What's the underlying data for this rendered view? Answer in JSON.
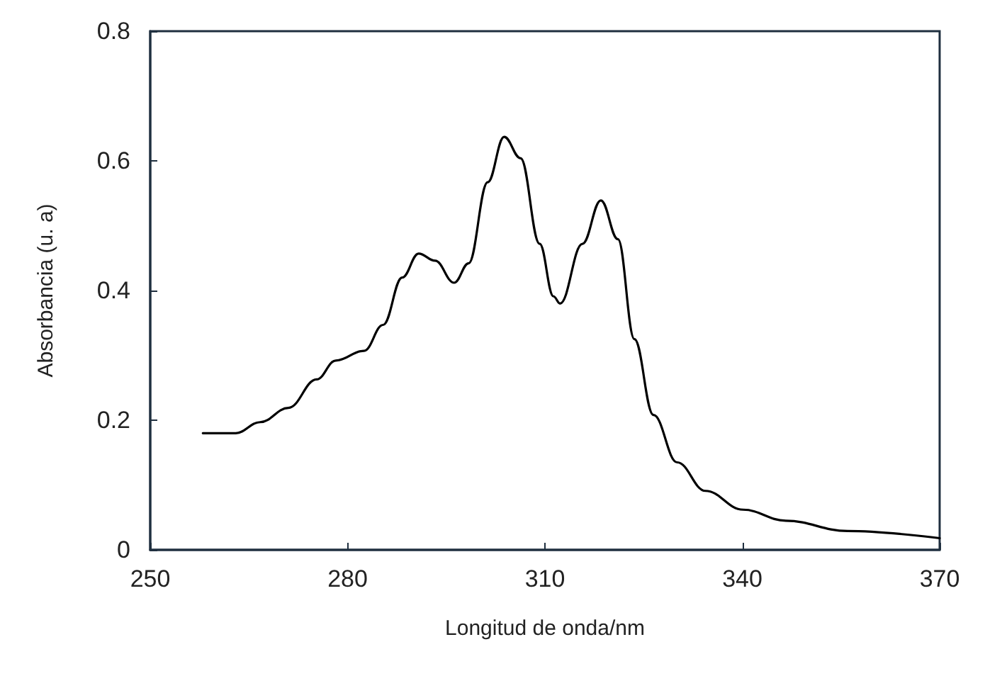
{
  "chart_data": {
    "type": "line",
    "xlabel": "Longitud de onda/nm",
    "ylabel": "Absorbancia (u. a)",
    "x": [
      258,
      263,
      266.7,
      271,
      275.3,
      278.2,
      282.5,
      285.4,
      288.3,
      290.8,
      293.3,
      296.2,
      298.4,
      301.3,
      303.8,
      306.3,
      309.2,
      311.3,
      312.3,
      315.7,
      318.5,
      321.1,
      323.6,
      326.5,
      330.1,
      334.4,
      340.1,
      346.6,
      356,
      370
    ],
    "series": [
      {
        "color": "#000000",
        "values": [
          0.18,
          0.18,
          0.197,
          0.219,
          0.263,
          0.292,
          0.307,
          0.347,
          0.42,
          0.457,
          0.446,
          0.412,
          0.442,
          0.567,
          0.637,
          0.604,
          0.472,
          0.391,
          0.38,
          0.472,
          0.539,
          0.479,
          0.325,
          0.208,
          0.135,
          0.091,
          0.062,
          0.045,
          0.029,
          0.018
        ]
      }
    ],
    "xlim": [
      250,
      370
    ],
    "xticks": [
      250,
      280,
      310,
      340,
      370
    ],
    "ylim": [
      0,
      0.8
    ],
    "yticks": [
      0,
      0.2,
      0.4,
      0.6,
      0.8
    ],
    "marker": "none",
    "line_style": "solid"
  }
}
